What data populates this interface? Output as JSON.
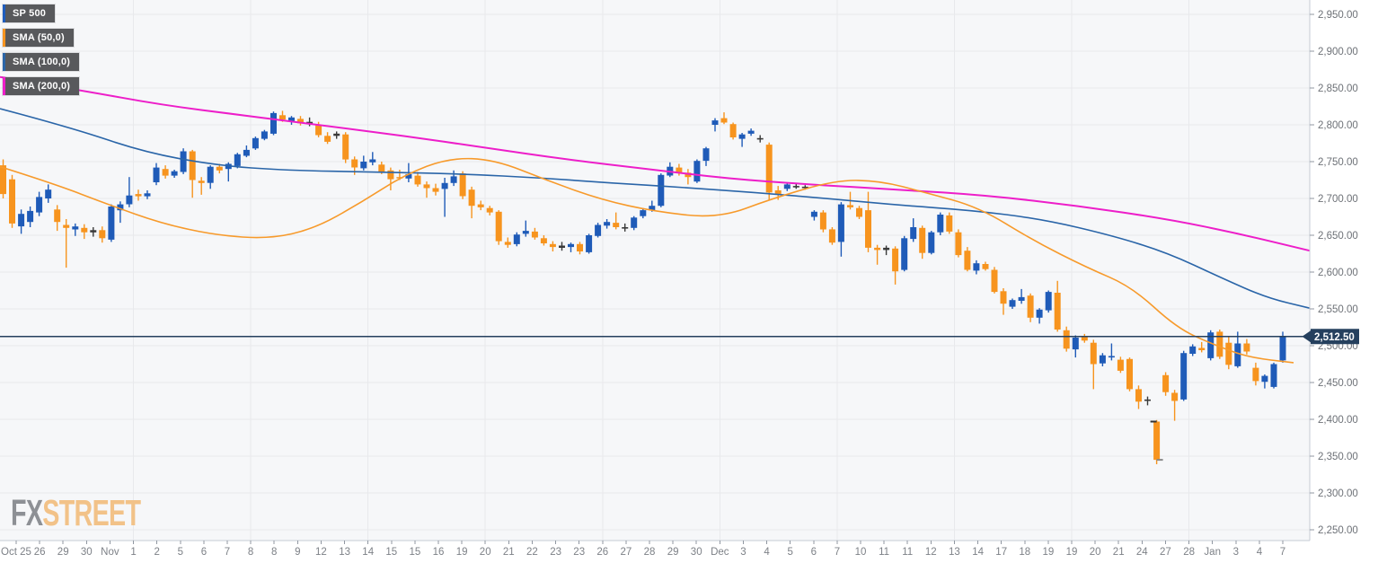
{
  "legend": {
    "items": [
      {
        "label": "SP 500",
        "color": "#1d5cbe"
      },
      {
        "label": "SMA (50,0)",
        "color": "#f79420"
      },
      {
        "label": "SMA (100,0)",
        "color": "#2a65a8"
      },
      {
        "label": "SMA (200,0)",
        "color": "#ed1ec9"
      }
    ]
  },
  "watermark": {
    "fx": "FX",
    "street": "STREET",
    "fx_color": "#888b90",
    "street_color": "#f2c083"
  },
  "price_marker": {
    "label": "2,512.50",
    "value": 2512.5,
    "bg": "#25405e",
    "text_color": "#ffffff"
  },
  "axis": {
    "y_ticks": [
      {
        "label": "2,950.00",
        "value": 2950
      },
      {
        "label": "2,900.00",
        "value": 2900
      },
      {
        "label": "2,850.00",
        "value": 2850
      },
      {
        "label": "2,800.00",
        "value": 2800
      },
      {
        "label": "2,750.00",
        "value": 2750
      },
      {
        "label": "2,700.00",
        "value": 2700
      },
      {
        "label": "2,650.00",
        "value": 2650
      },
      {
        "label": "2,600.00",
        "value": 2600
      },
      {
        "label": "2,550.00",
        "value": 2550
      },
      {
        "label": "2,500.00",
        "value": 2500
      },
      {
        "label": "2,450.00",
        "value": 2450
      },
      {
        "label": "2,400.00",
        "value": 2400
      },
      {
        "label": "2,350.00",
        "value": 2350
      },
      {
        "label": "2,300.00",
        "value": 2300
      },
      {
        "label": "2,250.00",
        "value": 2250
      }
    ],
    "x_labels": [
      "Oct 25",
      "26",
      "29",
      "30",
      "Nov",
      "1",
      "2",
      "5",
      "6",
      "7",
      "8",
      "8",
      "9",
      "12",
      "13",
      "14",
      "15",
      "15",
      "16",
      "19",
      "20",
      "21",
      "22",
      "23",
      "23",
      "26",
      "27",
      "28",
      "29",
      "30",
      "Dec",
      "3",
      "4",
      "5",
      "6",
      "7",
      "10",
      "11",
      "11",
      "12",
      "13",
      "14",
      "17",
      "18",
      "19",
      "19",
      "20",
      "21",
      "24",
      "27",
      "28",
      "Jan",
      "3",
      "4",
      "7"
    ]
  },
  "chart_data": {
    "type": "candlestick",
    "title": "SP 500",
    "symbol": "SP 500",
    "last_price": 2512.5,
    "y_range": [
      2235,
      2970
    ],
    "grid": true,
    "plot_bg": "#f6f7f9",
    "grid_color": "#e8e9ec",
    "border_color": "#c6cbd4",
    "up_color": "#1f5bb8",
    "down_color": "#f7941e",
    "doji_color": "#3a3a3a",
    "price_line_color": "#25405e",
    "candles_ohlc": [
      [
        2745,
        2753,
        2700,
        2706
      ],
      [
        2726,
        2732,
        2660,
        2666
      ],
      [
        2662,
        2685,
        2652,
        2679
      ],
      [
        2668,
        2689,
        2661,
        2683
      ],
      [
        2681,
        2709,
        2676,
        2702
      ],
      [
        2700,
        2719,
        2694,
        2712
      ],
      [
        2685,
        2691,
        2656,
        2668
      ],
      [
        2664,
        2672,
        2606,
        2660
      ],
      [
        2658,
        2666,
        2649,
        2662
      ],
      [
        2660,
        2665,
        2645,
        2654
      ],
      [
        2654,
        2661,
        2648,
        2657
      ],
      [
        2657,
        2662,
        2640,
        2646
      ],
      [
        2644,
        2692,
        2641,
        2689
      ],
      [
        2684,
        2696,
        2667,
        2692
      ],
      [
        2692,
        2729,
        2688,
        2704
      ],
      [
        2706,
        2712,
        2697,
        2703
      ],
      [
        2703,
        2711,
        2699,
        2707
      ],
      [
        2722,
        2748,
        2718,
        2742
      ],
      [
        2740,
        2745,
        2727,
        2731
      ],
      [
        2731,
        2739,
        2728,
        2737
      ],
      [
        2736,
        2768,
        2733,
        2764
      ],
      [
        2764,
        2766,
        2701,
        2725
      ],
      [
        2724,
        2729,
        2705,
        2721
      ],
      [
        2721,
        2745,
        2713,
        2743
      ],
      [
        2743,
        2747,
        2734,
        2738
      ],
      [
        2740,
        2749,
        2723,
        2747
      ],
      [
        2744,
        2762,
        2741,
        2760
      ],
      [
        2758,
        2772,
        2756,
        2766
      ],
      [
        2768,
        2784,
        2766,
        2782
      ],
      [
        2781,
        2793,
        2779,
        2791
      ],
      [
        2788,
        2818,
        2786,
        2816
      ],
      [
        2813,
        2819,
        2804,
        2807
      ],
      [
        2805,
        2812,
        2800,
        2810
      ],
      [
        2808,
        2812,
        2799,
        2802
      ],
      [
        2804,
        2810,
        2798,
        2801
      ],
      [
        2800,
        2804,
        2783,
        2786
      ],
      [
        2785,
        2790,
        2774,
        2777
      ],
      [
        2785,
        2791,
        2781,
        2788
      ],
      [
        2787,
        2790,
        2748,
        2753
      ],
      [
        2753,
        2757,
        2732,
        2742
      ],
      [
        2741,
        2758,
        2738,
        2750
      ],
      [
        2749,
        2763,
        2745,
        2753
      ],
      [
        2746,
        2750,
        2733,
        2736
      ],
      [
        2738,
        2742,
        2711,
        2726
      ],
      [
        2729,
        2739,
        2725,
        2728
      ],
      [
        2727,
        2748,
        2722,
        2733
      ],
      [
        2731,
        2736,
        2716,
        2719
      ],
      [
        2719,
        2723,
        2701,
        2714
      ],
      [
        2714,
        2720,
        2704,
        2709
      ],
      [
        2713,
        2728,
        2675,
        2721
      ],
      [
        2721,
        2738,
        2717,
        2730
      ],
      [
        2734,
        2737,
        2699,
        2703
      ],
      [
        2712,
        2716,
        2673,
        2690
      ],
      [
        2692,
        2697,
        2684,
        2688
      ],
      [
        2687,
        2690,
        2677,
        2681
      ],
      [
        2682,
        2684,
        2637,
        2642
      ],
      [
        2641,
        2647,
        2633,
        2637
      ],
      [
        2638,
        2654,
        2635,
        2651
      ],
      [
        2652,
        2670,
        2648,
        2656
      ],
      [
        2655,
        2660,
        2644,
        2647
      ],
      [
        2646,
        2650,
        2636,
        2639
      ],
      [
        2638,
        2642,
        2628,
        2634
      ],
      [
        2636,
        2641,
        2629,
        2633
      ],
      [
        2634,
        2640,
        2627,
        2638
      ],
      [
        2638,
        2641,
        2624,
        2628
      ],
      [
        2627,
        2652,
        2625,
        2650
      ],
      [
        2649,
        2667,
        2647,
        2664
      ],
      [
        2663,
        2672,
        2659,
        2668
      ],
      [
        2667,
        2681,
        2658,
        2661
      ],
      [
        2661,
        2666,
        2655,
        2659
      ],
      [
        2660,
        2676,
        2657,
        2674
      ],
      [
        2676,
        2687,
        2673,
        2684
      ],
      [
        2684,
        2697,
        2682,
        2690
      ],
      [
        2690,
        2734,
        2688,
        2732
      ],
      [
        2731,
        2749,
        2729,
        2743
      ],
      [
        2742,
        2747,
        2731,
        2735
      ],
      [
        2735,
        2740,
        2719,
        2729
      ],
      [
        2723,
        2753,
        2721,
        2751
      ],
      [
        2751,
        2770,
        2744,
        2768
      ],
      [
        2800,
        2809,
        2791,
        2806
      ],
      [
        2809,
        2817,
        2801,
        2803
      ],
      [
        2801,
        2803,
        2780,
        2783
      ],
      [
        2781,
        2789,
        2770,
        2787
      ],
      [
        2788,
        2795,
        2785,
        2792
      ],
      [
        2780,
        2786,
        2776,
        2782
      ],
      [
        2773,
        2776,
        2697,
        2708
      ],
      [
        2711,
        2717,
        2698,
        2706
      ],
      [
        2713,
        2721,
        2710,
        2719
      ],
      [
        2717,
        2720,
        2713,
        2715
      ],
      [
        2716,
        2718,
        2712,
        2714
      ],
      [
        2675,
        2684,
        2670,
        2682
      ],
      [
        2681,
        2684,
        2654,
        2658
      ],
      [
        2658,
        2661,
        2637,
        2640
      ],
      [
        2641,
        2695,
        2621,
        2692
      ],
      [
        2691,
        2709,
        2685,
        2688
      ],
      [
        2687,
        2690,
        2672,
        2675
      ],
      [
        2684,
        2709,
        2627,
        2633
      ],
      [
        2633,
        2637,
        2610,
        2630
      ],
      [
        2630,
        2636,
        2623,
        2633
      ],
      [
        2632,
        2635,
        2583,
        2601
      ],
      [
        2603,
        2649,
        2601,
        2646
      ],
      [
        2645,
        2673,
        2641,
        2661
      ],
      [
        2660,
        2663,
        2618,
        2626
      ],
      [
        2626,
        2656,
        2624,
        2654
      ],
      [
        2654,
        2681,
        2650,
        2678
      ],
      [
        2677,
        2681,
        2652,
        2655
      ],
      [
        2654,
        2658,
        2620,
        2623
      ],
      [
        2629,
        2634,
        2601,
        2603
      ],
      [
        2602,
        2616,
        2597,
        2612
      ],
      [
        2611,
        2614,
        2602,
        2604
      ],
      [
        2603,
        2607,
        2571,
        2573
      ],
      [
        2574,
        2578,
        2542,
        2557
      ],
      [
        2553,
        2564,
        2550,
        2562
      ],
      [
        2561,
        2577,
        2557,
        2566
      ],
      [
        2568,
        2571,
        2532,
        2538
      ],
      [
        2538,
        2551,
        2530,
        2549
      ],
      [
        2548,
        2575,
        2545,
        2573
      ],
      [
        2572,
        2588,
        2519,
        2522
      ],
      [
        2521,
        2526,
        2492,
        2496
      ],
      [
        2495,
        2514,
        2484,
        2511
      ],
      [
        2512,
        2516,
        2504,
        2507
      ],
      [
        2504,
        2508,
        2441,
        2475
      ],
      [
        2476,
        2490,
        2472,
        2487
      ],
      [
        2484,
        2503,
        2480,
        2486
      ],
      [
        2481,
        2485,
        2463,
        2466
      ],
      [
        2482,
        2484,
        2438,
        2441
      ],
      [
        2441,
        2446,
        2414,
        2424
      ],
      [
        2425,
        2431,
        2419,
        2427
      ],
      [
        2397,
        2399,
        2339,
        2345
      ],
      [
        2460,
        2464,
        2432,
        2437
      ],
      [
        2436,
        2440,
        2398,
        2425
      ],
      [
        2427,
        2493,
        2425,
        2490
      ],
      [
        2489,
        2502,
        2486,
        2499
      ],
      [
        2497,
        2505,
        2491,
        2494
      ],
      [
        2483,
        2521,
        2480,
        2518
      ],
      [
        2519,
        2522,
        2482,
        2485
      ],
      [
        2504,
        2513,
        2468,
        2474
      ],
      [
        2472,
        2519,
        2470,
        2503
      ],
      [
        2503,
        2509,
        2488,
        2492
      ],
      [
        2470,
        2477,
        2446,
        2452
      ],
      [
        2451,
        2461,
        2442,
        2459
      ],
      [
        2444,
        2477,
        2442,
        2475
      ],
      [
        2480,
        2519,
        2477,
        2513
      ]
    ],
    "series": [
      {
        "name": "SMA (50,0)",
        "type": "line",
        "color": "#f79a2b",
        "points": [
          [
            0,
            2743
          ],
          [
            60,
            2720
          ],
          [
            120,
            2692
          ],
          [
            180,
            2666
          ],
          [
            240,
            2650
          ],
          [
            300,
            2645
          ],
          [
            350,
            2659
          ],
          [
            400,
            2693
          ],
          [
            450,
            2732
          ],
          [
            500,
            2755
          ],
          [
            550,
            2753
          ],
          [
            610,
            2724
          ],
          [
            670,
            2698
          ],
          [
            730,
            2682
          ],
          [
            800,
            2673
          ],
          [
            860,
            2700
          ],
          [
            930,
            2725
          ],
          [
            980,
            2724
          ],
          [
            1030,
            2708
          ],
          [
            1090,
            2688
          ],
          [
            1150,
            2643
          ],
          [
            1210,
            2606
          ],
          [
            1260,
            2580
          ],
          [
            1310,
            2524
          ],
          [
            1350,
            2502
          ],
          [
            1390,
            2484
          ],
          [
            1440,
            2477
          ]
        ]
      },
      {
        "name": "SMA (100,0)",
        "type": "line",
        "color": "#2a65a8",
        "points": [
          [
            0,
            2822
          ],
          [
            80,
            2796
          ],
          [
            160,
            2763
          ],
          [
            240,
            2745
          ],
          [
            320,
            2738
          ],
          [
            420,
            2736
          ],
          [
            520,
            2733
          ],
          [
            600,
            2728
          ],
          [
            680,
            2721
          ],
          [
            760,
            2715
          ],
          [
            840,
            2708
          ],
          [
            920,
            2700
          ],
          [
            1000,
            2691
          ],
          [
            1080,
            2684
          ],
          [
            1160,
            2672
          ],
          [
            1240,
            2649
          ],
          [
            1300,
            2626
          ],
          [
            1360,
            2592
          ],
          [
            1410,
            2565
          ],
          [
            1458,
            2551
          ]
        ]
      },
      {
        "name": "SMA (200,0)",
        "type": "line",
        "color": "#ed1ec9",
        "points": [
          [
            0,
            2865
          ],
          [
            90,
            2847
          ],
          [
            180,
            2827
          ],
          [
            270,
            2813
          ],
          [
            360,
            2799
          ],
          [
            450,
            2785
          ],
          [
            540,
            2769
          ],
          [
            630,
            2753
          ],
          [
            720,
            2740
          ],
          [
            810,
            2727
          ],
          [
            900,
            2719
          ],
          [
            1000,
            2712
          ],
          [
            1100,
            2704
          ],
          [
            1200,
            2690
          ],
          [
            1300,
            2672
          ],
          [
            1380,
            2652
          ],
          [
            1458,
            2629
          ]
        ]
      }
    ]
  }
}
